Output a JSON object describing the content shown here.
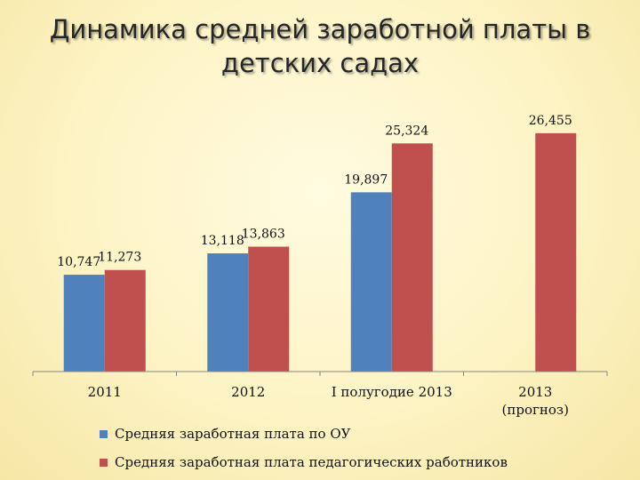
{
  "page": {
    "title_line1": "Динамика средней заработной платы в",
    "title_line2": "детских садах"
  },
  "colors": {
    "series_ou": "#4f81bd",
    "series_ped": "#c0504d",
    "axis": "#868686"
  },
  "chart_data": {
    "type": "bar",
    "title": "Динамика средней заработной платы в детских садах",
    "categories": [
      "2011",
      "2012",
      "I полугодие 2013",
      "2013\n(прогноз)"
    ],
    "series": [
      {
        "name": "Средняя заработная плата по ОУ",
        "values": [
          10.747,
          13.118,
          19.897,
          null
        ],
        "labels": [
          "10,747",
          "13,118",
          "19,897",
          ""
        ]
      },
      {
        "name": "Средняя заработная плата педагогических работников",
        "values": [
          11.273,
          13.863,
          25.324,
          26.455
        ],
        "labels": [
          "11,273",
          "13,863",
          "25,324",
          "26,455"
        ]
      }
    ],
    "ylim": [
      0,
      29.6
    ],
    "grid": false,
    "legend_position": "bottom-left",
    "xlabel": "",
    "ylabel": ""
  }
}
